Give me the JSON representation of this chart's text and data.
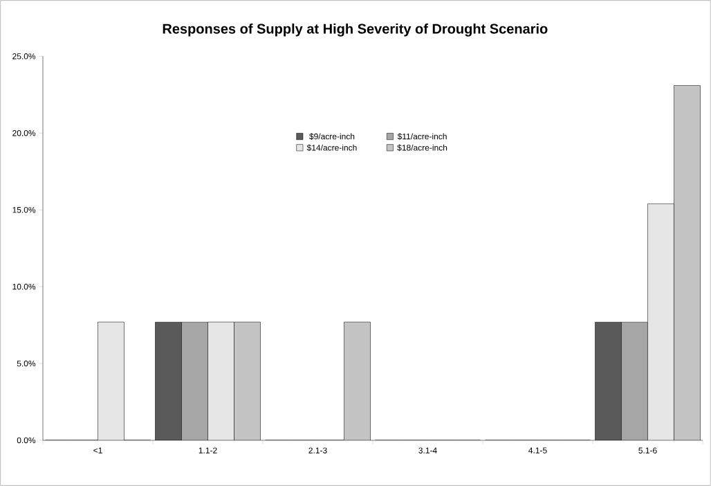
{
  "chart_data": {
    "type": "bar",
    "title": "Responses of Supply at High Severity of Drought Scenario",
    "categories": [
      "<1",
      "1.1-2",
      "2.1-3",
      "3.1-4",
      "4.1-5",
      "5.1-6"
    ],
    "series": [
      {
        "name": "$9/acre-inch",
        "color": "#5a5a5a",
        "values": [
          0,
          7.7,
          0,
          0,
          0,
          7.7
        ]
      },
      {
        "name": "$11/acre-inch",
        "color": "#a6a6a6",
        "values": [
          0,
          7.7,
          0,
          0,
          0,
          7.7
        ]
      },
      {
        "name": "$14/acre-inch",
        "color": "#e6e6e6",
        "values": [
          7.7,
          7.7,
          0,
          0,
          0,
          15.4
        ]
      },
      {
        "name": "$18/acre-inch",
        "color": "#c4c4c4",
        "values": [
          0,
          7.7,
          7.7,
          0,
          0,
          23.1
        ]
      }
    ],
    "ylim": [
      0,
      25
    ],
    "yticks": [
      {
        "value": 0,
        "label": "0.0%"
      },
      {
        "value": 5,
        "label": "5.0%"
      },
      {
        "value": 10,
        "label": "10.0%"
      },
      {
        "value": 15,
        "label": "15.0%"
      },
      {
        "value": 20,
        "label": "20.0%"
      },
      {
        "value": 25,
        "label": "25.0%"
      }
    ],
    "legend": "top",
    "grid": false
  }
}
